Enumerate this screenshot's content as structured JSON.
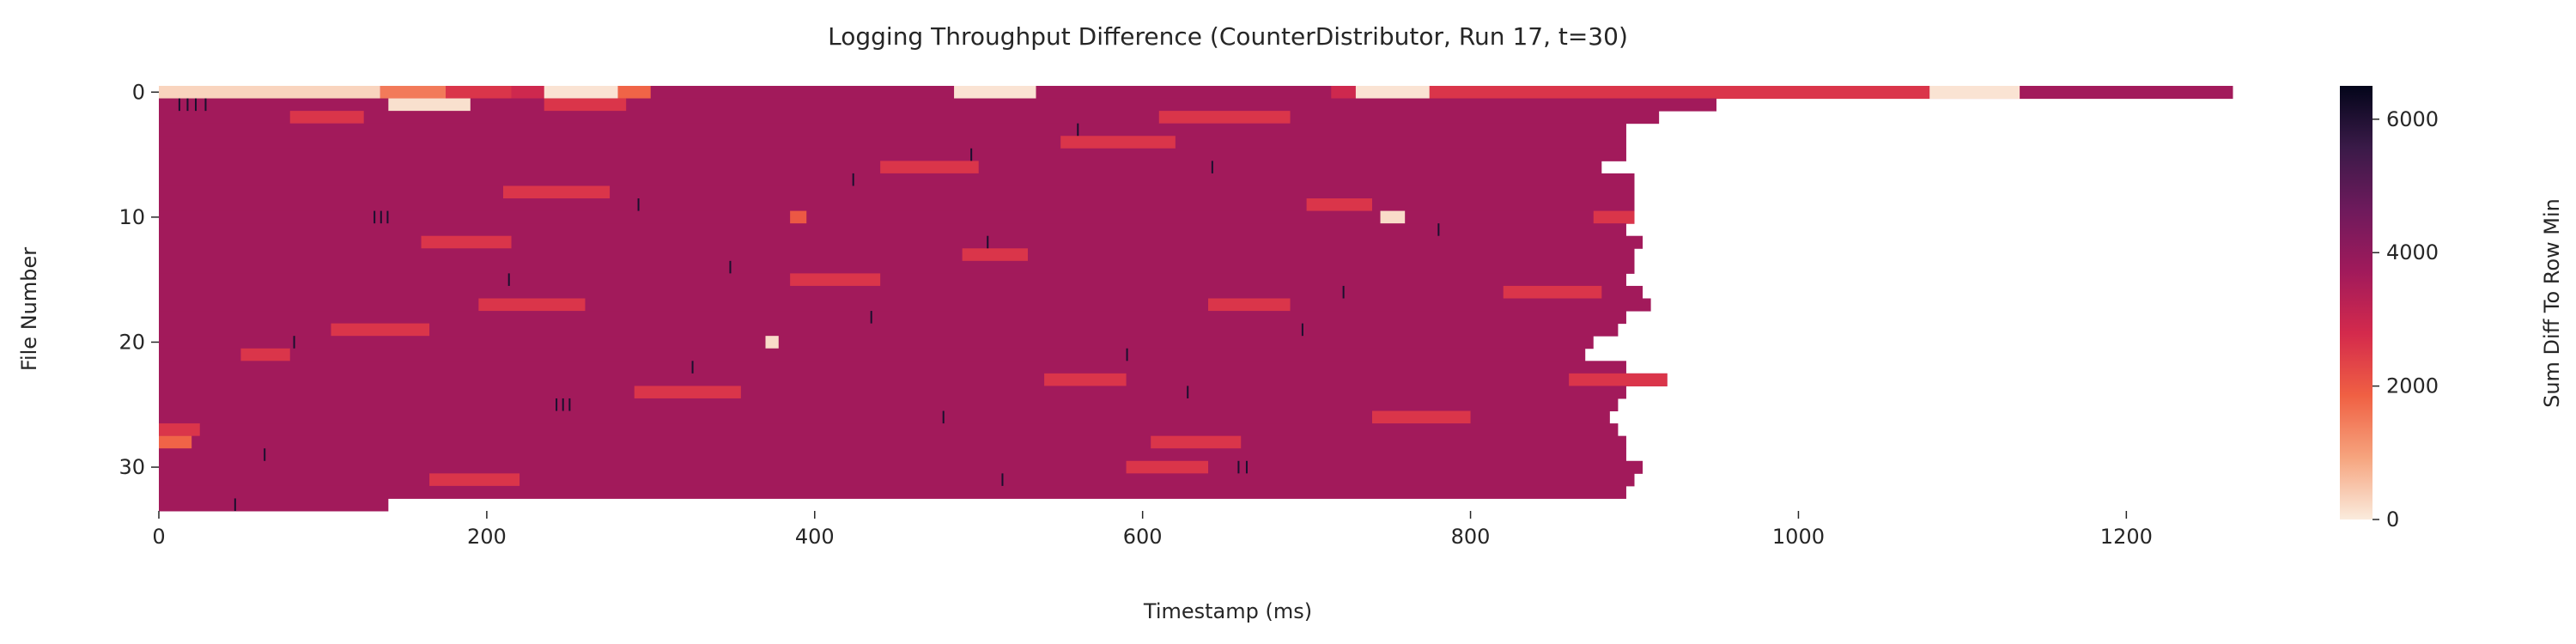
{
  "chart_data": {
    "type": "heatmap",
    "title": "Logging Throughput Difference (CounterDistributor, Run 17, t=30)",
    "xlabel": "Timestamp (ms)",
    "ylabel": "File Number",
    "xlim": [
      0,
      1270
    ],
    "ylim": [
      0,
      33
    ],
    "x_ticks": [
      0,
      200,
      400,
      600,
      800,
      1000,
      1200
    ],
    "y_ticks": [
      0,
      10,
      20,
      30
    ],
    "colorbar": {
      "label": "Sum Diff To Row Min",
      "ticks": [
        0,
        2000,
        4000,
        6000
      ],
      "range": [
        0,
        6500
      ],
      "colors": [
        "#faebdd",
        "#f6a47e",
        "#f06043",
        "#d42a4c",
        "#a11a5b",
        "#6e1a5c",
        "#3a1a48",
        "#03051a"
      ]
    },
    "grid": false,
    "base_value": 3700,
    "rows": [
      {
        "file": 0,
        "end": 1265,
        "base": 2900,
        "segments": [
          {
            "x0": 0,
            "x1": 135,
            "value": 300
          },
          {
            "x0": 135,
            "x1": 175,
            "value": 1500
          },
          {
            "x0": 175,
            "x1": 215,
            "value": 2600
          },
          {
            "x0": 235,
            "x1": 280,
            "value": 100
          },
          {
            "x0": 280,
            "x1": 300,
            "value": 1800
          },
          {
            "x0": 300,
            "x1": 485,
            "value": 3700
          },
          {
            "x0": 485,
            "x1": 535,
            "value": 100
          },
          {
            "x0": 535,
            "x1": 715,
            "value": 3700
          },
          {
            "x0": 730,
            "x1": 775,
            "value": 100
          },
          {
            "x0": 775,
            "x1": 1080,
            "value": 2600
          },
          {
            "x0": 1080,
            "x1": 1135,
            "value": 100
          },
          {
            "x0": 1135,
            "x1": 1265,
            "value": 3700
          }
        ]
      },
      {
        "file": 1,
        "end": 950,
        "segments": [
          {
            "x0": 140,
            "x1": 190,
            "value": 150
          },
          {
            "x0": 235,
            "x1": 285,
            "value": 2600
          }
        ]
      },
      {
        "file": 2,
        "end": 915,
        "segments": [
          {
            "x0": 80,
            "x1": 125,
            "value": 2600
          },
          {
            "x0": 610,
            "x1": 690,
            "value": 2600
          }
        ]
      },
      {
        "file": 3,
        "end": 895,
        "segments": []
      },
      {
        "file": 4,
        "end": 895,
        "segments": [
          {
            "x0": 550,
            "x1": 620,
            "value": 2600
          }
        ]
      },
      {
        "file": 5,
        "end": 895,
        "segments": []
      },
      {
        "file": 6,
        "end": 880,
        "segments": [
          {
            "x0": 440,
            "x1": 500,
            "value": 2600
          }
        ]
      },
      {
        "file": 7,
        "end": 900,
        "segments": []
      },
      {
        "file": 8,
        "end": 900,
        "segments": [
          {
            "x0": 210,
            "x1": 275,
            "value": 2600
          }
        ]
      },
      {
        "file": 9,
        "end": 900,
        "segments": [
          {
            "x0": 700,
            "x1": 740,
            "value": 2600
          }
        ]
      },
      {
        "file": 10,
        "end": 900,
        "segments": [
          {
            "x0": 385,
            "x1": 395,
            "value": 2000
          },
          {
            "x0": 745,
            "x1": 760,
            "value": 200
          },
          {
            "x0": 875,
            "x1": 900,
            "value": 2600
          }
        ]
      },
      {
        "file": 11,
        "end": 895,
        "segments": []
      },
      {
        "file": 12,
        "end": 905,
        "segments": [
          {
            "x0": 160,
            "x1": 215,
            "value": 2600
          }
        ]
      },
      {
        "file": 13,
        "end": 900,
        "segments": [
          {
            "x0": 490,
            "x1": 530,
            "value": 2600
          }
        ]
      },
      {
        "file": 14,
        "end": 900,
        "segments": []
      },
      {
        "file": 15,
        "end": 895,
        "segments": [
          {
            "x0": 385,
            "x1": 440,
            "value": 2600
          }
        ]
      },
      {
        "file": 16,
        "end": 905,
        "segments": [
          {
            "x0": 820,
            "x1": 880,
            "value": 2600
          }
        ]
      },
      {
        "file": 17,
        "end": 910,
        "segments": [
          {
            "x0": 195,
            "x1": 260,
            "value": 2600
          },
          {
            "x0": 640,
            "x1": 690,
            "value": 2600
          }
        ]
      },
      {
        "file": 18,
        "end": 895,
        "segments": []
      },
      {
        "file": 19,
        "end": 890,
        "segments": [
          {
            "x0": 105,
            "x1": 165,
            "value": 2600
          }
        ]
      },
      {
        "file": 20,
        "end": 875,
        "segments": [
          {
            "x0": 370,
            "x1": 378,
            "value": 200
          }
        ]
      },
      {
        "file": 21,
        "end": 870,
        "segments": [
          {
            "x0": 50,
            "x1": 80,
            "value": 2600
          }
        ]
      },
      {
        "file": 22,
        "end": 895,
        "segments": []
      },
      {
        "file": 23,
        "end": 920,
        "segments": [
          {
            "x0": 540,
            "x1": 590,
            "value": 2600
          },
          {
            "x0": 860,
            "x1": 920,
            "value": 2600
          }
        ]
      },
      {
        "file": 24,
        "end": 895,
        "segments": [
          {
            "x0": 290,
            "x1": 355,
            "value": 2600
          }
        ]
      },
      {
        "file": 25,
        "end": 890,
        "segments": []
      },
      {
        "file": 26,
        "end": 885,
        "segments": [
          {
            "x0": 740,
            "x1": 800,
            "value": 2600
          }
        ]
      },
      {
        "file": 27,
        "end": 890,
        "segments": [
          {
            "x0": 0,
            "x1": 25,
            "value": 2600
          }
        ]
      },
      {
        "file": 28,
        "end": 895,
        "segments": [
          {
            "x0": 0,
            "x1": 20,
            "value": 1800
          },
          {
            "x0": 605,
            "x1": 660,
            "value": 2600
          }
        ]
      },
      {
        "file": 29,
        "end": 895,
        "segments": []
      },
      {
        "file": 30,
        "end": 905,
        "segments": [
          {
            "x0": 590,
            "x1": 640,
            "value": 2600
          }
        ]
      },
      {
        "file": 31,
        "end": 900,
        "segments": [
          {
            "x0": 165,
            "x1": 220,
            "value": 2600
          }
        ]
      },
      {
        "file": 32,
        "end": 895,
        "segments": []
      },
      {
        "file": 33,
        "end": 140,
        "segments": []
      }
    ],
    "dark_marks": [
      {
        "file": 1,
        "x": 12
      },
      {
        "file": 1,
        "x": 17
      },
      {
        "file": 1,
        "x": 22
      },
      {
        "file": 1,
        "x": 28
      },
      {
        "file": 10,
        "x": 131
      },
      {
        "file": 10,
        "x": 135
      },
      {
        "file": 10,
        "x": 139
      },
      {
        "file": 25,
        "x": 242
      },
      {
        "file": 25,
        "x": 246
      },
      {
        "file": 25,
        "x": 250
      },
      {
        "file": 30,
        "x": 658
      },
      {
        "file": 30,
        "x": 663
      },
      {
        "file": 3,
        "x": 560
      },
      {
        "file": 5,
        "x": 495
      },
      {
        "file": 7,
        "x": 423
      },
      {
        "file": 12,
        "x": 505
      },
      {
        "file": 14,
        "x": 348
      },
      {
        "file": 16,
        "x": 722
      },
      {
        "file": 18,
        "x": 434
      },
      {
        "file": 20,
        "x": 82
      },
      {
        "file": 21,
        "x": 590
      },
      {
        "file": 24,
        "x": 627
      },
      {
        "file": 26,
        "x": 478
      },
      {
        "file": 29,
        "x": 64
      },
      {
        "file": 31,
        "x": 514
      },
      {
        "file": 33,
        "x": 46
      },
      {
        "file": 15,
        "x": 213
      },
      {
        "file": 22,
        "x": 325
      },
      {
        "file": 6,
        "x": 642
      },
      {
        "file": 9,
        "x": 292
      },
      {
        "file": 11,
        "x": 780
      },
      {
        "file": 19,
        "x": 697
      }
    ]
  }
}
